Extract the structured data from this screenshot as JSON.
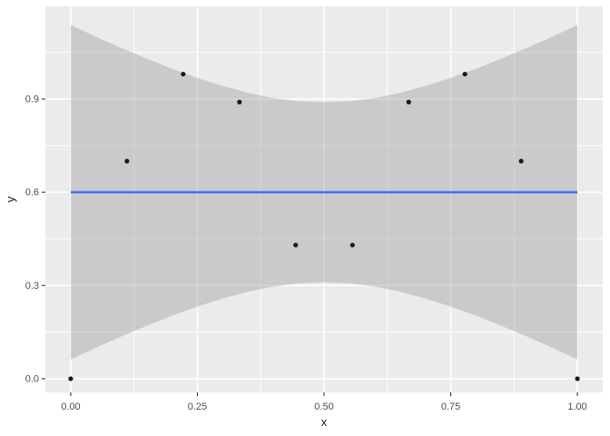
{
  "figure": {
    "background": "#FFFFFF",
    "panel_background": "#EBEBEB",
    "grid_color": "#FFFFFF",
    "tick_mark_color": "#333333",
    "tick_label_color": "#4D4D4D",
    "axis_title_color": "#1A1A1A"
  },
  "chart_data": {
    "type": "scatter",
    "title": "",
    "xlabel": "x",
    "ylabel": "y",
    "xlim": [
      -0.05,
      1.05
    ],
    "ylim": [
      -0.044,
      1.198
    ],
    "grid": true,
    "legend": "none",
    "x_major_ticks": [
      0.0,
      0.25,
      0.5,
      0.75,
      1.0
    ],
    "x_tick_labels": [
      "0.00",
      "0.25",
      "0.50",
      "0.75",
      "1.00"
    ],
    "x_minor_ticks": [
      0.125,
      0.375,
      0.625,
      0.875
    ],
    "y_major_ticks": [
      0.0,
      0.3,
      0.6,
      0.9
    ],
    "y_tick_labels": [
      "0.0",
      "0.3",
      "0.6",
      "0.9"
    ],
    "y_minor_ticks": [
      0.15,
      0.45,
      0.75,
      1.05
    ],
    "points": {
      "color": "#1A1A1A",
      "radius": 2.6,
      "x": [
        0.0,
        0.111,
        0.222,
        0.333,
        0.444,
        0.556,
        0.667,
        0.778,
        0.889,
        1.0
      ],
      "y": [
        0.0,
        0.7,
        0.98,
        0.89,
        0.43,
        0.43,
        0.89,
        0.98,
        0.7,
        0.0
      ]
    },
    "smooth": {
      "method": "lm",
      "line_color": "#3366FF",
      "line_width": 2.2,
      "line_y": 0.6,
      "x_range": [
        0.0,
        1.0
      ],
      "ribbon_color": "#999999",
      "ribbon_opacity": 0.4,
      "ribbon": {
        "x": [
          0.0,
          0.05,
          0.1,
          0.15,
          0.2,
          0.25,
          0.3,
          0.35,
          0.4,
          0.45,
          0.5,
          0.55,
          0.6,
          0.65,
          0.7,
          0.75,
          0.8,
          0.85,
          0.9,
          0.95,
          1.0
        ],
        "upper": [
          1.138,
          1.1,
          1.064,
          1.03,
          0.997,
          0.968,
          0.942,
          0.92,
          0.903,
          0.893,
          0.89,
          0.893,
          0.903,
          0.92,
          0.942,
          0.968,
          0.997,
          1.03,
          1.064,
          1.1,
          1.138
        ],
        "lower": [
          0.062,
          0.1,
          0.136,
          0.17,
          0.203,
          0.232,
          0.258,
          0.28,
          0.297,
          0.307,
          0.31,
          0.307,
          0.297,
          0.28,
          0.258,
          0.232,
          0.203,
          0.17,
          0.136,
          0.1,
          0.062
        ]
      }
    }
  }
}
